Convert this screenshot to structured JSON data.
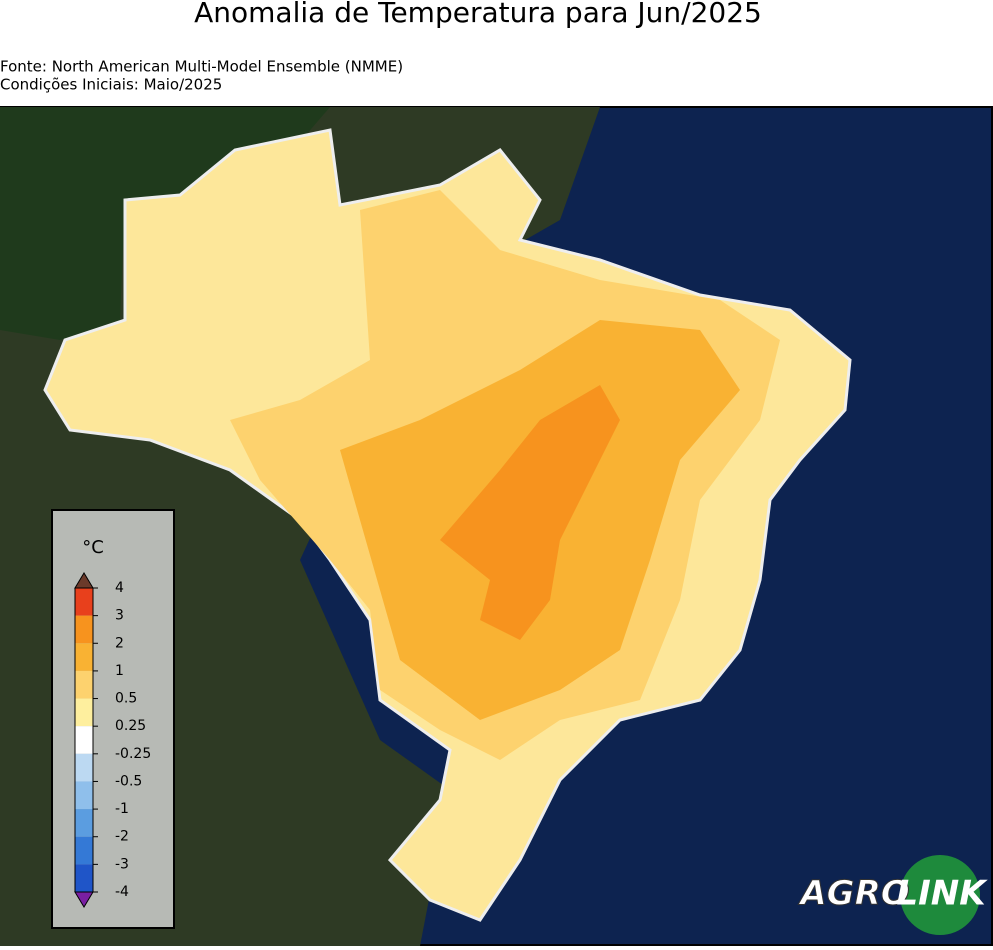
{
  "header": {
    "title": "Anomalia de Temperatura para Jun/2025",
    "source": "Fonte: North American Multi-Model Ensemble (NMME)",
    "initial_conditions": "Condições Iniciais: Maio/2025"
  },
  "legend": {
    "unit": "°C",
    "ticks": [
      4,
      3,
      2,
      1,
      0.5,
      0.25,
      -0.25,
      -0.5,
      -1,
      -2,
      -3,
      -4
    ],
    "colors": [
      "#e8401c",
      "#f7931e",
      "#f9b233",
      "#fdd26e",
      "#feef9e",
      "#ffffff",
      "#bcd9f2",
      "#8fbfeb",
      "#5b9de0",
      "#3479d6",
      "#1f55c8"
    ],
    "top_extend_color": "#6b3a2a",
    "bottom_extend_color": "#7a1fa2"
  },
  "logo": {
    "part1": "AGRO",
    "part2": "LINK"
  }
}
